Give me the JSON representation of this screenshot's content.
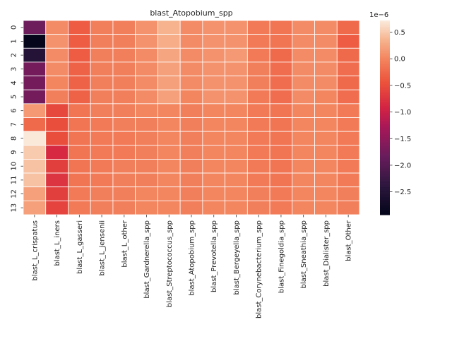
{
  "chart_data": {
    "type": "heatmap",
    "title": "blast_Atopobium_spp",
    "xlabel": "",
    "ylabel": "",
    "columns": [
      "blast_L_crispatus",
      "blast_L_iners",
      "blast_L_gasseri",
      "blast_L_jensenii",
      "blast_L_other",
      "blast_Gardnerella_spp",
      "blast_Streptococcus_spp",
      "blast_Atopobium_spp",
      "blast_Prevotella_spp",
      "blast_Bergeyella_spp",
      "blast_Corynebacterium_spp",
      "blast_Finegoldia_spp",
      "blast_Sneathia_spp",
      "blast_Dialister_spp",
      "blast_Other"
    ],
    "rows": [
      "0",
      "1",
      "2",
      "3",
      "4",
      "5",
      "6",
      "7",
      "8",
      "9",
      "10",
      "11",
      "12",
      "13"
    ],
    "values": [
      [
        -1.8,
        0.05,
        -0.35,
        -0.05,
        -0.05,
        0.1,
        0.35,
        0.05,
        0.1,
        0.1,
        -0.1,
        -0.15,
        0.05,
        0.05,
        -0.25
      ],
      [
        -2.9,
        0.1,
        -0.35,
        -0.05,
        -0.05,
        0.1,
        0.3,
        0.05,
        0.1,
        0.1,
        -0.1,
        -0.15,
        0.05,
        0.05,
        -0.35
      ],
      [
        -2.5,
        0.05,
        -0.35,
        -0.05,
        -0.05,
        0.05,
        0.25,
        0.05,
        0.1,
        0.15,
        -0.1,
        -0.25,
        0.05,
        0.05,
        -0.25
      ],
      [
        -1.75,
        0.05,
        -0.3,
        -0.05,
        -0.05,
        0.05,
        0.2,
        0.05,
        0.1,
        0.1,
        -0.05,
        -0.2,
        0.05,
        0.05,
        -0.2
      ],
      [
        -1.75,
        0.0,
        -0.3,
        -0.05,
        -0.05,
        0.05,
        0.2,
        0.05,
        0.1,
        0.1,
        -0.05,
        -0.2,
        0.05,
        0.05,
        -0.25
      ],
      [
        -1.75,
        -0.05,
        -0.3,
        -0.05,
        -0.05,
        0.05,
        0.2,
        0.0,
        0.1,
        0.1,
        -0.1,
        -0.2,
        0.05,
        0.0,
        -0.2
      ],
      [
        0.15,
        -0.55,
        -0.15,
        -0.05,
        -0.05,
        0.0,
        0.0,
        -0.05,
        0.0,
        0.0,
        -0.1,
        -0.15,
        0.0,
        0.0,
        -0.1
      ],
      [
        -0.25,
        -0.5,
        -0.15,
        -0.1,
        -0.05,
        -0.05,
        0.0,
        -0.05,
        0.0,
        0.0,
        -0.1,
        -0.15,
        0.0,
        0.0,
        -0.1
      ],
      [
        0.7,
        -0.5,
        -0.15,
        -0.1,
        -0.1,
        -0.05,
        0.0,
        -0.05,
        0.0,
        0.0,
        -0.1,
        -0.15,
        0.0,
        0.0,
        -0.1
      ],
      [
        0.5,
        -0.85,
        -0.15,
        -0.1,
        -0.1,
        -0.05,
        0.0,
        -0.05,
        0.0,
        0.0,
        -0.1,
        -0.15,
        0.0,
        0.0,
        -0.1
      ],
      [
        0.45,
        -0.65,
        -0.15,
        -0.1,
        -0.05,
        -0.05,
        0.0,
        -0.05,
        0.0,
        0.0,
        -0.1,
        -0.15,
        0.0,
        0.0,
        -0.1
      ],
      [
        0.45,
        -0.75,
        -0.15,
        -0.1,
        -0.05,
        -0.05,
        0.0,
        -0.05,
        0.0,
        0.0,
        -0.1,
        -0.15,
        0.0,
        0.0,
        -0.1
      ],
      [
        0.2,
        -0.65,
        -0.1,
        -0.05,
        -0.05,
        0.0,
        0.0,
        -0.05,
        0.0,
        0.0,
        -0.05,
        -0.1,
        0.0,
        0.0,
        -0.05
      ],
      [
        0.2,
        -0.6,
        -0.1,
        -0.05,
        -0.05,
        0.0,
        0.0,
        -0.05,
        0.0,
        0.0,
        -0.05,
        -0.1,
        0.0,
        0.0,
        -0.05
      ]
    ],
    "colorbar": {
      "min": -2.93,
      "max": 0.72,
      "ticks": [
        -2.5,
        -2.0,
        -1.5,
        -1.0,
        -0.5,
        0.0,
        0.5
      ],
      "tick_labels": [
        "−2.5",
        "−2.0",
        "−1.5",
        "−1.0",
        "−0.5",
        "0.0",
        "0.5"
      ],
      "scale_label": "1e−6",
      "colormap": "rocket"
    },
    "grid_lines": true,
    "grid_color": "#ffffff"
  }
}
